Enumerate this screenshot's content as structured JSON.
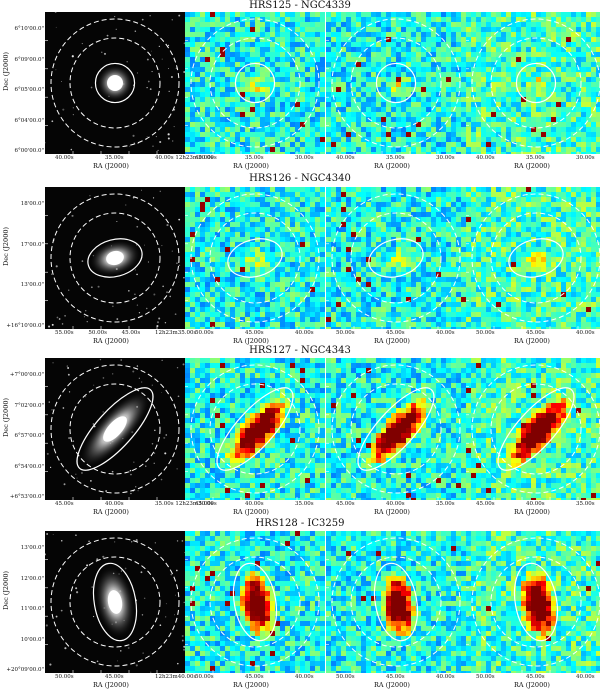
{
  "rows": [
    {
      "title": "HRS125 - NGC4339",
      "ylabel": "Dec (J2000)",
      "yticks": [
        "6°10'00.0\"",
        "6°09'00.0\"",
        "6°05'00.0\"",
        "6°04'00.0\"",
        "6°00'00.0\""
      ],
      "panels": [
        {
          "kind": "optical",
          "xticks": [
            "40.00s",
            "35.00s",
            "40.00s 12h23m30.00s"
          ],
          "xlabel": "RA (J2000)"
        },
        {
          "kind": "heat",
          "xticks": [
            "40.00s",
            "35.00s",
            "30.00s"
          ],
          "xlabel": "RA (J2000)"
        },
        {
          "kind": "heat",
          "xticks": [
            "40.00s",
            "35.00s",
            "30.00s"
          ],
          "xlabel": "RA (J2000)"
        },
        {
          "kind": "heat",
          "xticks": [
            "40.00s",
            "35.00s",
            "30.00s"
          ],
          "xlabel": "RA (J2000)"
        }
      ]
    },
    {
      "title": "HRS126 - NGC4340",
      "ylabel": "Dec (J2000)",
      "yticks": [
        "18'00.0\"",
        "17'00.0\"",
        "13'00.0\"",
        "+16°10'00.0\""
      ],
      "panels": [
        {
          "kind": "optical",
          "xticks": [
            "55.00s",
            "50.00s",
            "45.00s",
            "12h23m35.00s"
          ],
          "xlabel": "RA (J2000)"
        },
        {
          "kind": "heat",
          "xticks": [
            "50.00s",
            "45.00s",
            "40.00s"
          ],
          "xlabel": "RA (J2000)"
        },
        {
          "kind": "heat",
          "xticks": [
            "50.00s",
            "45.00s",
            "40.00s"
          ],
          "xlabel": "RA (J2000)"
        },
        {
          "kind": "heat",
          "xticks": [
            "50.00s",
            "45.00s",
            "40.00s"
          ],
          "xlabel": "RA (J2000)"
        }
      ]
    },
    {
      "title": "HRS127 - NGC4343",
      "ylabel": "Dec (J2000)",
      "yticks": [
        "+7°00'00.0\"",
        "7°02'00.0\"",
        "6°57'00.0\"",
        "6°54'00.0\"",
        "+6°53'00.0\""
      ],
      "panels": [
        {
          "kind": "optical",
          "xticks": [
            "45.00s",
            "40.00s",
            "35.00s 12h23m30.00s"
          ],
          "xlabel": "RA (J2000)"
        },
        {
          "kind": "heat",
          "xticks": [
            "45.00s",
            "40.00s",
            "35.00s"
          ],
          "xlabel": "RA (J2000)"
        },
        {
          "kind": "heat",
          "xticks": [
            "45.00s",
            "40.00s",
            "35.00s"
          ],
          "xlabel": "RA (J2000)"
        },
        {
          "kind": "heat",
          "xticks": [
            "45.00s",
            "40.00s",
            "35.00s"
          ],
          "xlabel": "RA (J2000)"
        }
      ]
    },
    {
      "title": "HRS128 - IC3259",
      "ylabel": "Dec (J2000)",
      "yticks": [
        "13'00.0\"",
        "12'00.0\"",
        "11'00.0\"",
        "10'00.0\"",
        "+20°09'00.0\""
      ],
      "panels": [
        {
          "kind": "optical",
          "xticks": [
            "50.00s",
            "45.00s",
            "12h23m40.00s"
          ],
          "xlabel": "RA (J2000)"
        },
        {
          "kind": "heat",
          "xticks": [
            "50.00s",
            "45.00s",
            "40.00s"
          ],
          "xlabel": "RA (J2000)"
        },
        {
          "kind": "heat",
          "xticks": [
            "50.00s",
            "45.00s",
            "40.00s"
          ],
          "xlabel": "RA (J2000)"
        },
        {
          "kind": "heat",
          "xticks": [
            "50.00s",
            "45.00s",
            "40.00s"
          ],
          "xlabel": "RA (J2000)"
        }
      ]
    }
  ]
}
